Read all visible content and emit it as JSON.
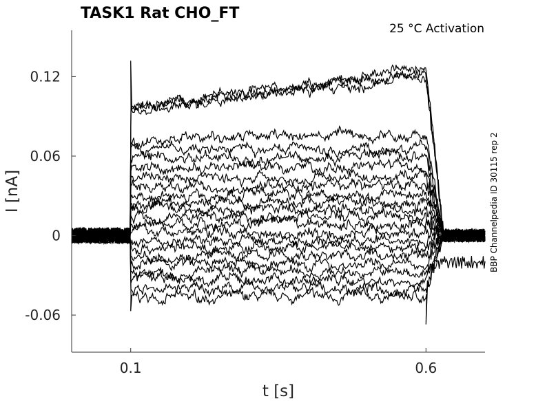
{
  "chart_data": {
    "type": "line",
    "title": "TASK1  Rat  CHO_FT",
    "annotation": "25 °C  Activation",
    "side_label": "BBP Channelpedia ID 30115 rep 2",
    "xlabel": "t [s]",
    "ylabel": "I [nA]",
    "xlim": [
      0,
      0.7
    ],
    "ylim": [
      -0.088,
      0.155
    ],
    "xticks": [
      0.1,
      0.6
    ],
    "xtick_labels": [
      "0.1",
      "0.6"
    ],
    "yticks": [
      -0.06,
      0,
      0.06,
      0.12
    ],
    "ytick_labels": [
      "-0.06",
      "0",
      "0.06",
      "0.12"
    ],
    "grid": false,
    "pulse": {
      "start": 0.1,
      "end": 0.6
    },
    "trace_color": "#000000",
    "series": [
      {
        "steady_start": -0.047,
        "steady_end": -0.046,
        "post": 0.0,
        "spike_on": -0.057,
        "spike_off": -0.067
      },
      {
        "steady_start": -0.04,
        "steady_end": -0.04,
        "post": 0.0
      },
      {
        "steady_start": -0.033,
        "steady_end": -0.034,
        "post": 0.0
      },
      {
        "steady_start": -0.027,
        "steady_end": -0.028,
        "post": -0.02
      },
      {
        "steady_start": -0.021,
        "steady_end": -0.022,
        "post": 0.0
      },
      {
        "steady_start": -0.015,
        "steady_end": -0.015,
        "post": 0.0
      },
      {
        "steady_start": -0.009,
        "steady_end": -0.01,
        "post": 0.0
      },
      {
        "steady_start": -0.004,
        "steady_end": -0.004,
        "post": 0.0
      },
      {
        "steady_start": 0.003,
        "steady_end": 0.002,
        "post": 0.0
      },
      {
        "steady_start": 0.009,
        "steady_end": 0.008,
        "post": 0.0
      },
      {
        "steady_start": 0.015,
        "steady_end": 0.014,
        "post": 0.0
      },
      {
        "steady_start": 0.02,
        "steady_end": 0.02,
        "post": 0.0
      },
      {
        "steady_start": 0.024,
        "steady_end": 0.026,
        "post": 0.0
      },
      {
        "steady_start": 0.03,
        "steady_end": 0.032,
        "post": 0.0
      },
      {
        "steady_start": 0.036,
        "steady_end": 0.038,
        "post": 0.0
      },
      {
        "steady_start": 0.043,
        "steady_end": 0.045,
        "post": 0.0
      },
      {
        "steady_start": 0.05,
        "steady_end": 0.052,
        "post": 0.0
      },
      {
        "steady_start": 0.059,
        "steady_end": 0.06,
        "post": 0.0
      },
      {
        "steady_start": 0.065,
        "steady_end": 0.066,
        "post": 0.0
      },
      {
        "steady_start": 0.072,
        "steady_end": 0.076,
        "post": 0.0
      },
      {
        "steady_start": 0.094,
        "steady_end": 0.123,
        "post": 0.0,
        "spike_on": 0.132
      },
      {
        "steady_start": 0.096,
        "steady_end": 0.127,
        "post": 0.0
      },
      {
        "steady_start": 0.098,
        "steady_end": 0.119,
        "post": 0.0
      }
    ]
  }
}
